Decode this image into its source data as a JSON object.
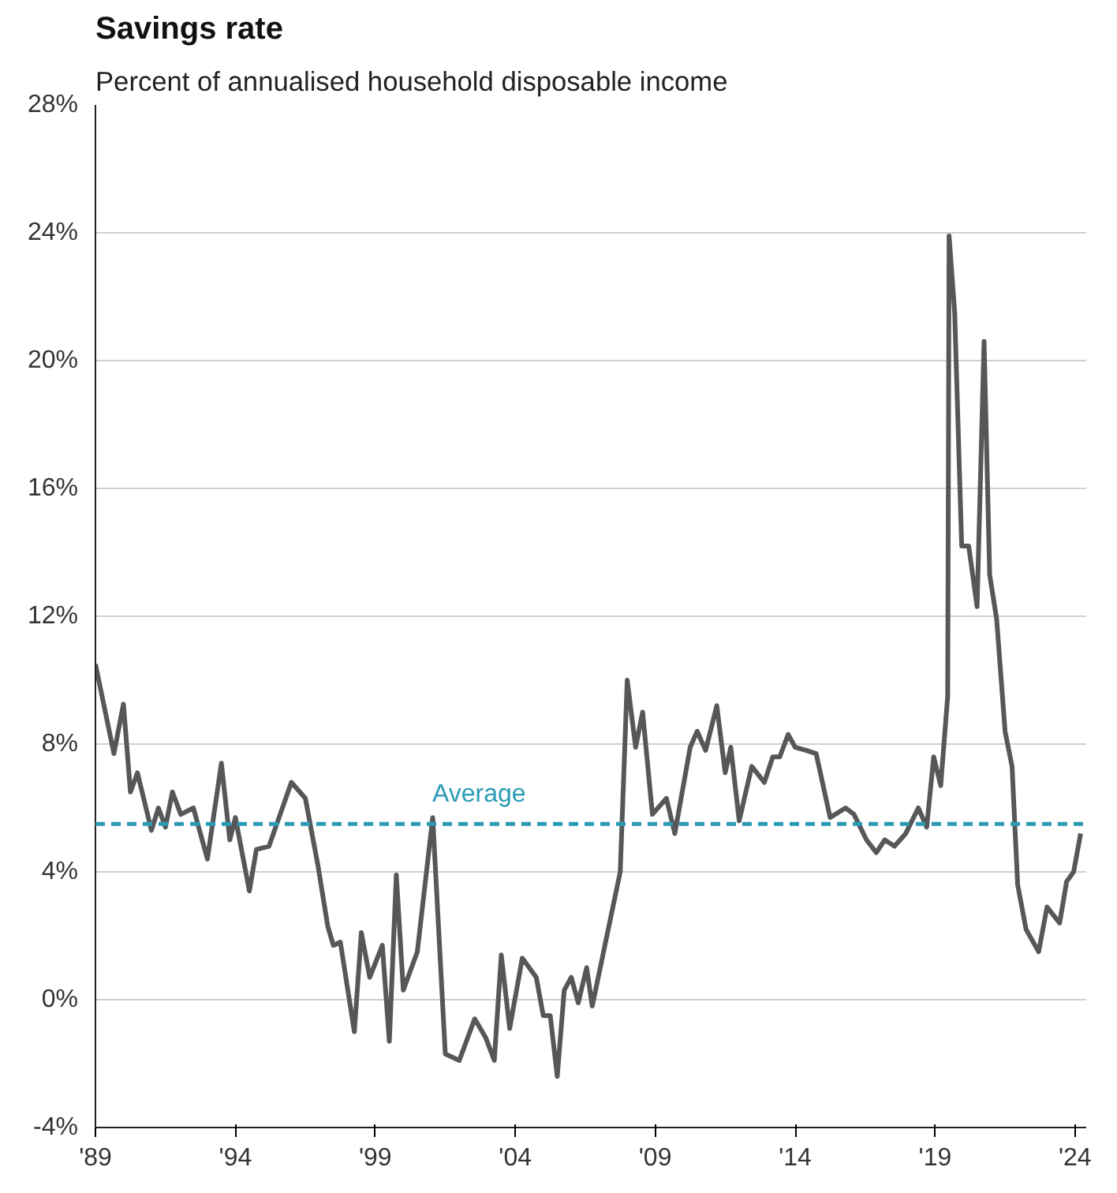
{
  "chart_data": {
    "type": "line",
    "title": "Savings rate",
    "subtitle": "Percent of annualised household disposable income",
    "x": [
      1989.0,
      1989.66,
      1990.0,
      1990.25,
      1990.5,
      1991.0,
      1991.25,
      1991.5,
      1991.75,
      1992.05,
      1992.5,
      1993.0,
      1993.5,
      1993.8,
      1994.0,
      1994.5,
      1994.75,
      1995.2,
      1996.0,
      1996.5,
      1996.95,
      1997.3,
      1997.5,
      1997.75,
      1998.25,
      1998.5,
      1998.8,
      1999.25,
      1999.5,
      1999.75,
      2000.0,
      2000.5,
      2001.05,
      2001.5,
      2002.0,
      2002.55,
      2002.95,
      2003.25,
      2003.5,
      2003.8,
      2004.25,
      2004.75,
      2005.0,
      2005.25,
      2005.5,
      2005.75,
      2006.0,
      2006.25,
      2006.55,
      2006.75,
      2007.75,
      2008.0,
      2008.3,
      2008.55,
      2008.9,
      2009.4,
      2009.7,
      2010.25,
      2010.5,
      2010.8,
      2011.2,
      2011.5,
      2011.7,
      2012.0,
      2012.45,
      2012.9,
      2013.2,
      2013.45,
      2013.75,
      2014.0,
      2014.4,
      2014.75,
      2015.25,
      2015.8,
      2016.1,
      2016.55,
      2016.9,
      2017.2,
      2017.55,
      2017.95,
      2018.4,
      2018.7,
      2018.95,
      2019.2,
      2019.45,
      2019.5,
      2019.7,
      2019.95,
      2020.2,
      2020.5,
      2020.75,
      2020.95,
      2021.2,
      2021.5,
      2021.75,
      2021.95,
      2022.25,
      2022.7,
      2023.0,
      2023.45,
      2023.7,
      2023.95,
      2024.2
    ],
    "series": [
      {
        "color": "#555759",
        "values": [
          10.5,
          7.7,
          9.25,
          6.5,
          7.1,
          5.3,
          6.0,
          5.4,
          6.5,
          5.8,
          6.0,
          4.4,
          7.4,
          5.0,
          5.7,
          3.4,
          4.7,
          4.8,
          6.8,
          6.3,
          4.2,
          2.3,
          1.7,
          1.8,
          -1.0,
          2.1,
          0.7,
          1.7,
          -1.3,
          3.9,
          0.3,
          1.5,
          5.7,
          -1.7,
          -1.9,
          -0.6,
          -1.2,
          -1.9,
          1.4,
          -0.9,
          1.3,
          0.7,
          -0.5,
          -0.5,
          -2.4,
          0.3,
          0.7,
          -0.1,
          1.0,
          -0.2,
          4.0,
          10.0,
          7.9,
          9.0,
          5.8,
          6.3,
          5.2,
          7.9,
          8.4,
          7.8,
          9.2,
          7.1,
          7.9,
          5.6,
          7.3,
          6.8,
          7.6,
          7.6,
          8.3,
          7.9,
          7.8,
          7.7,
          5.7,
          6.0,
          5.8,
          5.0,
          4.6,
          5.0,
          4.8,
          5.2,
          6.0,
          5.4,
          7.6,
          6.7,
          9.5,
          23.9,
          21.5,
          14.2,
          14.2,
          12.3,
          20.6,
          13.3,
          11.9,
          8.4,
          7.3,
          3.6,
          2.2,
          1.5,
          2.9,
          2.4,
          3.7,
          4.0,
          5.2
        ]
      }
    ],
    "xlim": [
      1989,
      2024.4
    ],
    "xticks": [
      {
        "value": 1989,
        "label": "'89"
      },
      {
        "value": 1994,
        "label": "'94"
      },
      {
        "value": 1999,
        "label": "'99"
      },
      {
        "value": 2004,
        "label": "'04"
      },
      {
        "value": 2009,
        "label": "'09"
      },
      {
        "value": 2014,
        "label": "'14"
      },
      {
        "value": 2019,
        "label": "'19"
      },
      {
        "value": 2024,
        "label": "'24"
      }
    ],
    "ylim": [
      -4,
      28
    ],
    "yticks": [
      {
        "value": -4,
        "label": "-4%"
      },
      {
        "value": 0,
        "label": "0%"
      },
      {
        "value": 4,
        "label": "4%"
      },
      {
        "value": 8,
        "label": "8%"
      },
      {
        "value": 12,
        "label": "12%"
      },
      {
        "value": 16,
        "label": "16%"
      },
      {
        "value": 20,
        "label": "20%"
      },
      {
        "value": 24,
        "label": "24%"
      },
      {
        "value": 28,
        "label": "28%"
      }
    ],
    "grid": "y",
    "ref_lines": [
      {
        "axis": "y",
        "value": 5.5,
        "label": "Average",
        "color": "#2a9bb5",
        "line_style": "dashed"
      }
    ]
  }
}
